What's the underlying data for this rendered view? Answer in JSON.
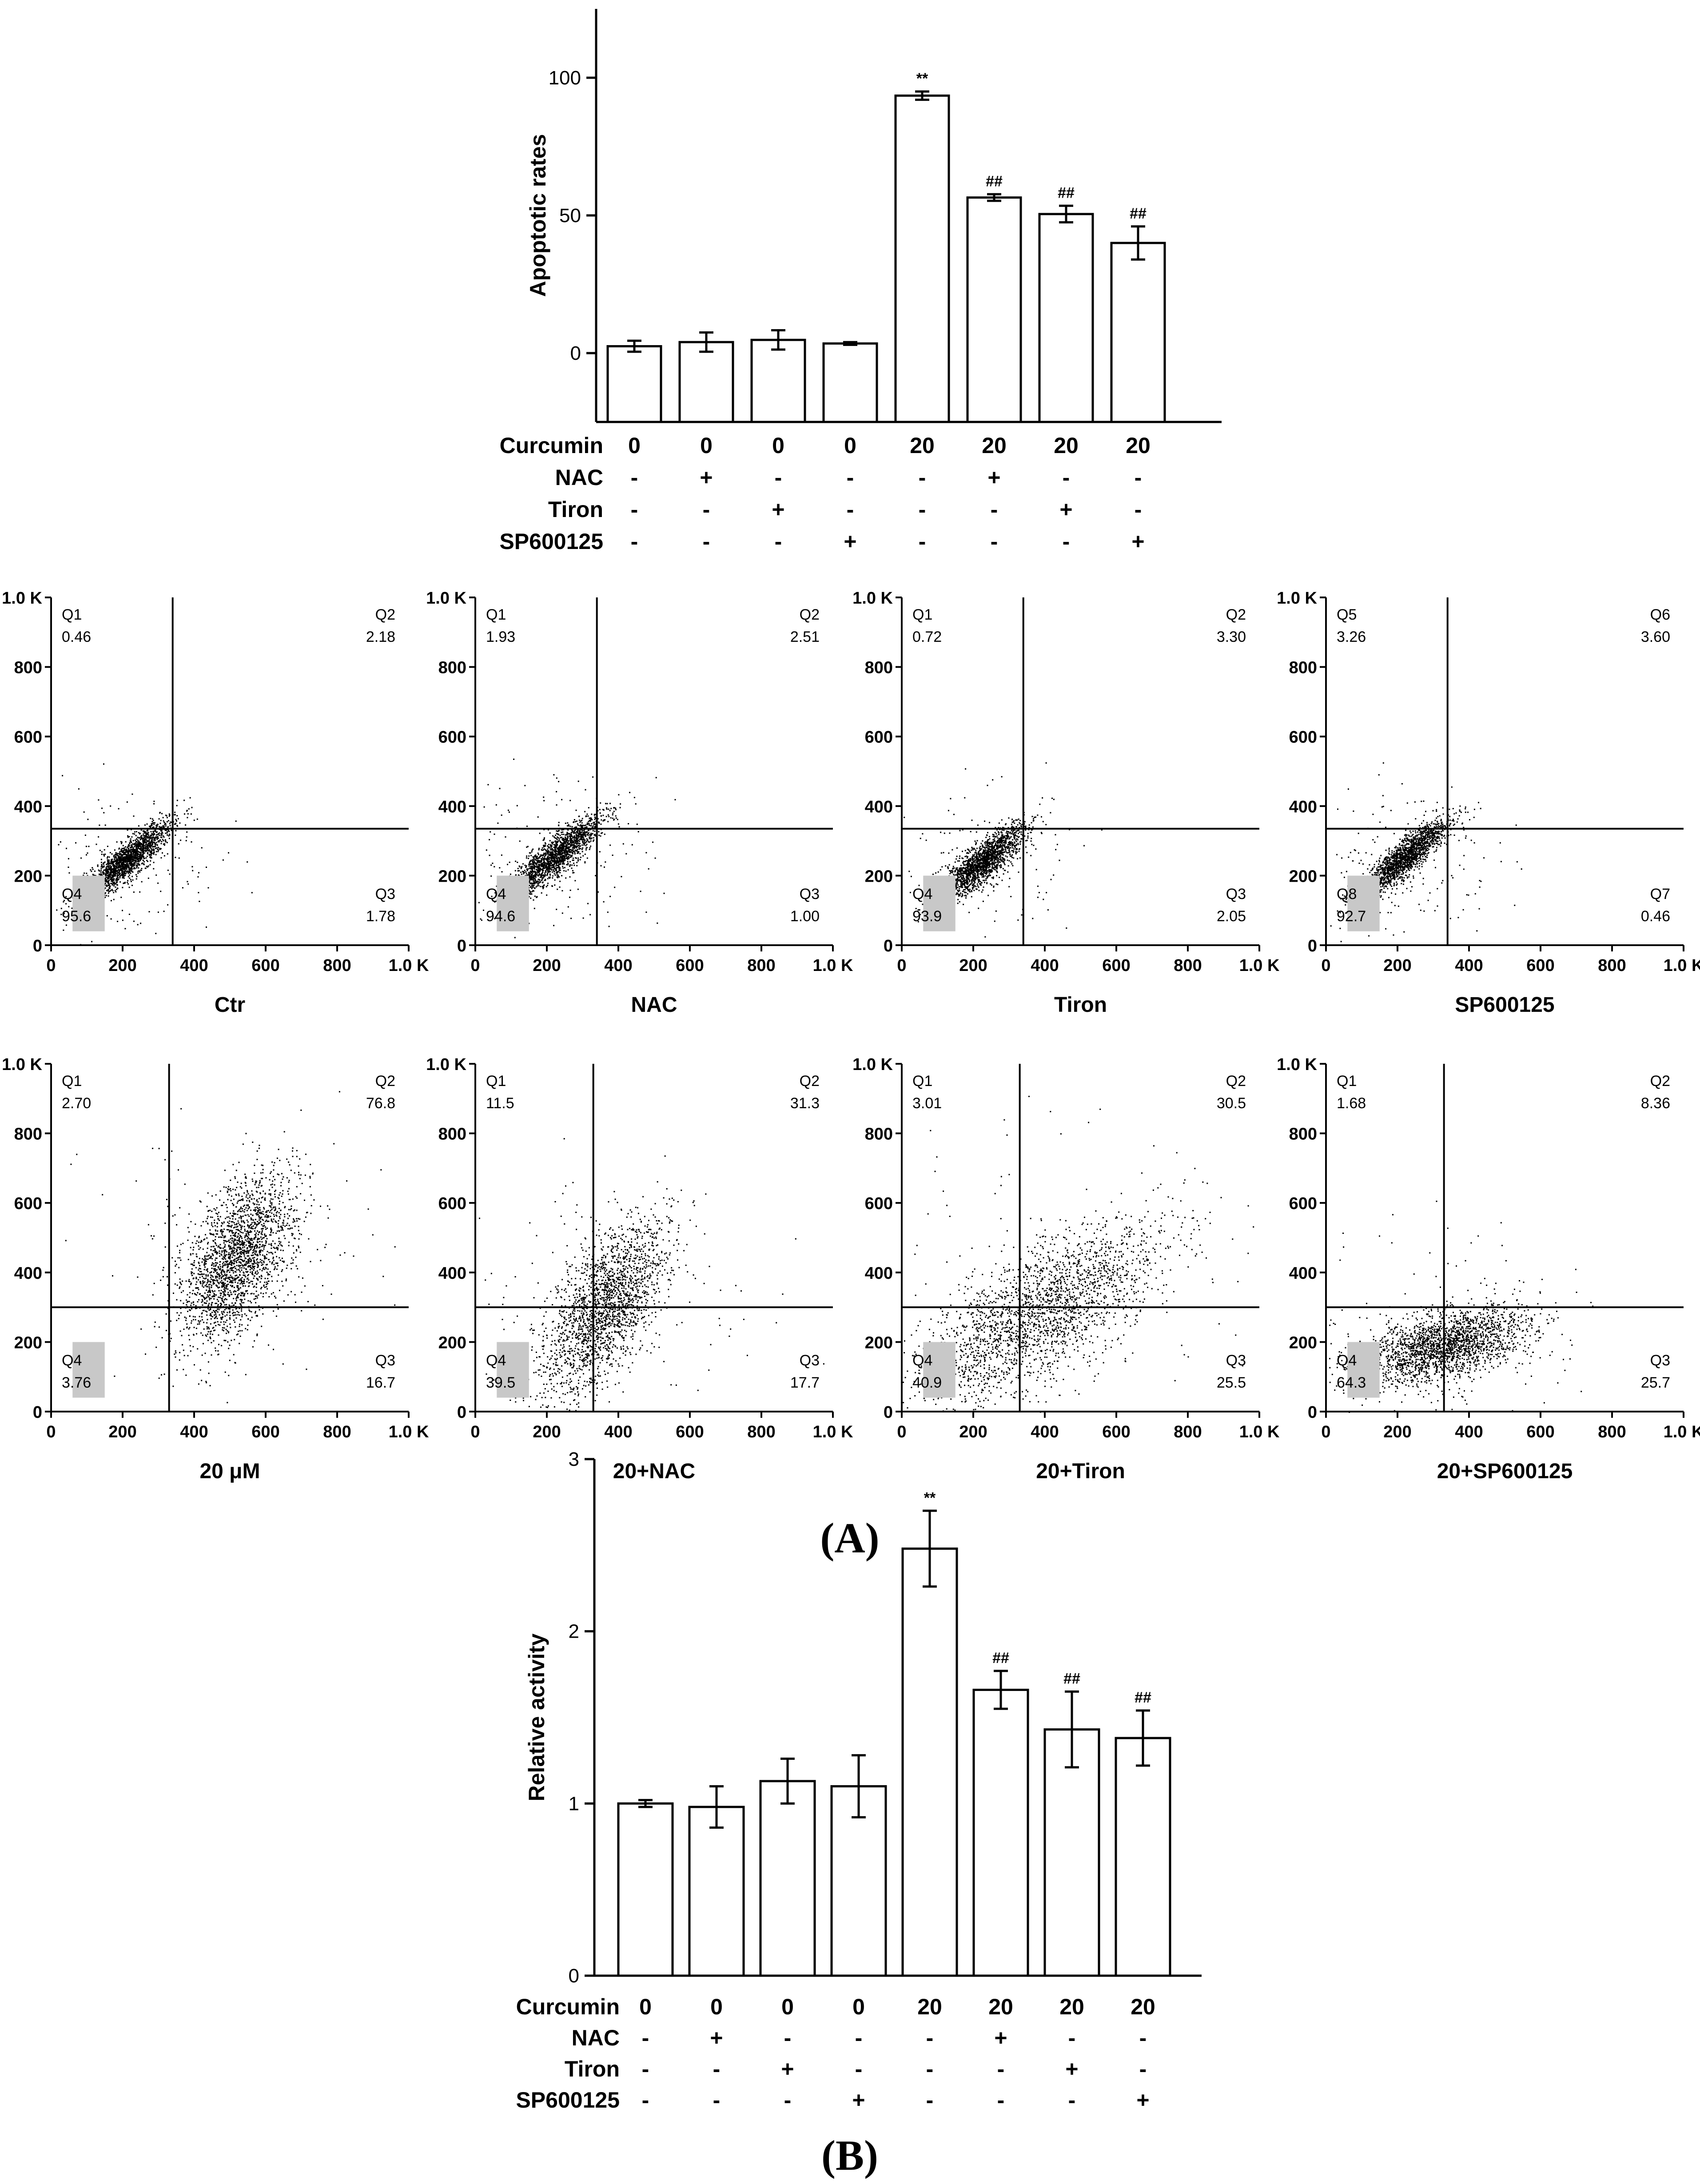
{
  "chart_data": [
    {
      "id": "A-bar",
      "type": "bar",
      "title": "",
      "ylabel": "Apoptotic rates",
      "xlabel": "",
      "ylim": [
        -25,
        125
      ],
      "yticks": [
        0,
        50,
        100
      ],
      "values": [
        2.5,
        4.0,
        4.8,
        3.5,
        93.5,
        56.5,
        50.5,
        40.0
      ],
      "errors": [
        2.0,
        3.5,
        3.5,
        0.5,
        1.5,
        1.2,
        3.0,
        6.0
      ],
      "annotations": [
        "",
        "",
        "",
        "",
        "**",
        "##",
        "##",
        "##"
      ],
      "treatment_rows": [
        {
          "label": "Curcumin",
          "values": [
            "0",
            "0",
            "0",
            "0",
            "20",
            "20",
            "20",
            "20"
          ]
        },
        {
          "label": "NAC",
          "values": [
            "-",
            "+",
            "-",
            "-",
            "-",
            "+",
            "-",
            "-"
          ]
        },
        {
          "label": "Tiron",
          "values": [
            "-",
            "-",
            "+",
            "-",
            "-",
            "-",
            "+",
            "-"
          ]
        },
        {
          "label": "SP600125",
          "values": [
            "-",
            "-",
            "-",
            "+",
            "-",
            "-",
            "-",
            "+"
          ]
        }
      ]
    },
    {
      "id": "A-flow",
      "type": "scatter",
      "axis": {
        "xticks": [
          "0",
          "200",
          "400",
          "600",
          "800",
          "1.0 K"
        ],
        "yticks": [
          "0",
          "200",
          "400",
          "600",
          "800",
          "1.0 K"
        ],
        "xlim": [
          0,
          1000
        ],
        "ylim": [
          0,
          1000
        ]
      },
      "panels": [
        {
          "caption": "Ctr",
          "gate": [
            340,
            335
          ],
          "labels": {
            "ul": "Q1",
            "ur": "Q2",
            "lr": "Q3",
            "ll": "Q4"
          },
          "values": {
            "ul": "0.46",
            "ur": "2.18",
            "lr": "1.78",
            "ll": "95.6"
          },
          "cloud": {
            "cx": 210,
            "cy": 245,
            "sd_major": 80,
            "sd_minor": 20,
            "angle": 42,
            "n": 1800
          }
        },
        {
          "caption": "NAC",
          "gate": [
            340,
            335
          ],
          "labels": {
            "ul": "Q1",
            "ur": "Q2",
            "lr": "Q3",
            "ll": "Q4"
          },
          "values": {
            "ul": "1.93",
            "ur": "2.51",
            "lr": "1.00",
            "ll": "94.6"
          },
          "cloud": {
            "cx": 220,
            "cy": 255,
            "sd_major": 85,
            "sd_minor": 22,
            "angle": 42,
            "n": 1800
          }
        },
        {
          "caption": "Tiron",
          "gate": [
            340,
            335
          ],
          "labels": {
            "ul": "Q1",
            "ur": "Q2",
            "lr": "Q3",
            "ll": "Q4"
          },
          "values": {
            "ul": "0.72",
            "ur": "3.30",
            "lr": "2.05",
            "ll": "93.9"
          },
          "cloud": {
            "cx": 225,
            "cy": 240,
            "sd_major": 75,
            "sd_minor": 22,
            "angle": 42,
            "n": 1800
          }
        },
        {
          "caption": "SP600125",
          "gate": [
            340,
            335
          ],
          "labels": {
            "ul": "Q5",
            "ur": "Q6",
            "lr": "Q7",
            "ll": "Q8"
          },
          "values": {
            "ul": "3.26",
            "ur": "3.60",
            "lr": "0.46",
            "ll": "92.7"
          },
          "cloud": {
            "cx": 215,
            "cy": 250,
            "sd_major": 80,
            "sd_minor": 20,
            "angle": 42,
            "n": 1800
          }
        },
        {
          "caption": "20 μM",
          "gate": [
            330,
            300
          ],
          "labels": {
            "ul": "Q1",
            "ur": "Q2",
            "lr": "Q3",
            "ll": "Q4"
          },
          "values": {
            "ul": "2.70",
            "ur": "76.8",
            "lr": "16.7",
            "ll": "3.76"
          },
          "cloud": {
            "cx": 520,
            "cy": 440,
            "sd_major": 130,
            "sd_minor": 60,
            "angle": 65,
            "n": 2200
          }
        },
        {
          "caption": "20+NAC",
          "gate": [
            330,
            300
          ],
          "labels": {
            "ul": "Q1",
            "ur": "Q2",
            "lr": "Q3",
            "ll": "Q4"
          },
          "values": {
            "ul": "11.5",
            "ur": "31.3",
            "lr": "17.7",
            "ll": "39.5"
          },
          "cloud": {
            "cx": 360,
            "cy": 300,
            "sd_major": 140,
            "sd_minor": 60,
            "angle": 60,
            "n": 2000
          }
        },
        {
          "caption": "20+Tiron",
          "gate": [
            330,
            300
          ],
          "labels": {
            "ul": "Q1",
            "ur": "Q2",
            "lr": "Q3",
            "ll": "Q4"
          },
          "values": {
            "ul": "3.01",
            "ur": "30.5",
            "lr": "25.5",
            "ll": "40.9"
          },
          "cloud": {
            "cx": 380,
            "cy": 280,
            "sd_major": 200,
            "sd_minor": 80,
            "angle": 35,
            "n": 2200
          }
        },
        {
          "caption": "20+SP600125",
          "gate": [
            330,
            300
          ],
          "labels": {
            "ul": "Q1",
            "ur": "Q2",
            "lr": "Q3",
            "ll": "Q4"
          },
          "values": {
            "ul": "1.68",
            "ur": "8.36",
            "lr": "25.7",
            "ll": "64.3"
          },
          "cloud": {
            "cx": 330,
            "cy": 190,
            "sd_major": 120,
            "sd_minor": 45,
            "angle": 15,
            "n": 2100
          }
        }
      ]
    },
    {
      "id": "B-bar",
      "type": "bar",
      "title": "",
      "ylabel": "Relative activity",
      "xlabel": "",
      "ylim": [
        0,
        3
      ],
      "yticks": [
        0,
        1,
        2,
        3
      ],
      "values": [
        1.0,
        0.98,
        1.13,
        1.1,
        2.48,
        1.66,
        1.43,
        1.38
      ],
      "errors": [
        0.02,
        0.12,
        0.13,
        0.18,
        0.22,
        0.11,
        0.22,
        0.16
      ],
      "annotations": [
        "",
        "",
        "",
        "",
        "**",
        "##",
        "##",
        "##"
      ],
      "treatment_rows": [
        {
          "label": "Curcumin",
          "values": [
            "0",
            "0",
            "0",
            "0",
            "20",
            "20",
            "20",
            "20"
          ]
        },
        {
          "label": "NAC",
          "values": [
            "-",
            "+",
            "-",
            "-",
            "-",
            "+",
            "-",
            "-"
          ]
        },
        {
          "label": "Tiron",
          "values": [
            "-",
            "-",
            "+",
            "-",
            "-",
            "-",
            "+",
            "-"
          ]
        },
        {
          "label": "SP600125",
          "values": [
            "-",
            "-",
            "-",
            "+",
            "-",
            "-",
            "-",
            "+"
          ]
        }
      ]
    }
  ],
  "panel_labels": {
    "a": "(A)",
    "b": "(B)"
  }
}
